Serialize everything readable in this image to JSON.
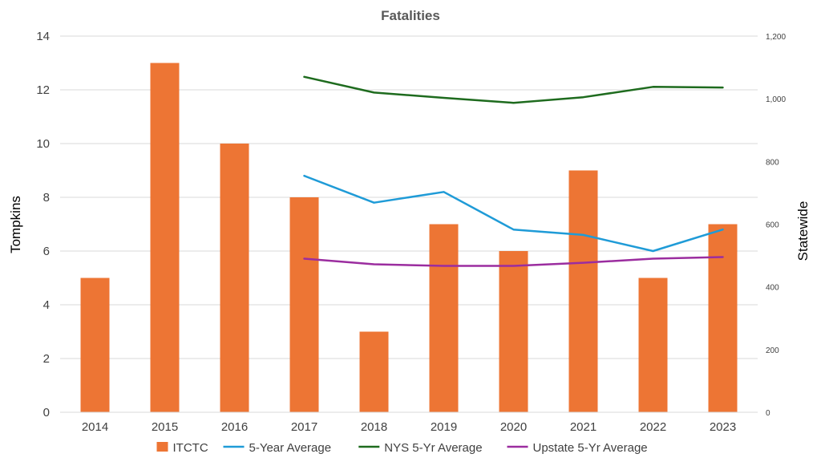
{
  "chart_data": {
    "type": "bar",
    "title": "Fatalities",
    "xlabel": "",
    "ylabel": "Tompkins",
    "y2label": "Statewide",
    "categories": [
      "2014",
      "2015",
      "2016",
      "2017",
      "2018",
      "2019",
      "2020",
      "2021",
      "2022",
      "2023"
    ],
    "ylim": [
      0,
      14
    ],
    "y_ticks": [
      "0",
      "2",
      "4",
      "6",
      "8",
      "10",
      "12",
      "14"
    ],
    "y2lim": [
      0,
      1200
    ],
    "y2_ticks": [
      "0",
      "200",
      "400",
      "600",
      "800",
      "1,000",
      "1,200"
    ],
    "grid": true,
    "legend_position": "bottom",
    "series": [
      {
        "name": "ITCTC",
        "type": "bar",
        "axis": "left",
        "color": "#ED7534",
        "values": [
          5,
          13,
          10,
          8,
          3,
          7,
          6,
          9,
          5,
          7
        ]
      },
      {
        "name": "5-Year Average",
        "type": "line",
        "axis": "left",
        "color": "#1F9BD7",
        "values": [
          null,
          null,
          null,
          8.8,
          7.8,
          8.2,
          6.8,
          6.6,
          6.0,
          6.8
        ]
      },
      {
        "name": "NYS 5-Yr Average",
        "type": "line",
        "axis": "right",
        "color": "#1E6B1E",
        "values": [
          null,
          null,
          null,
          1070,
          1020,
          1003,
          987,
          1005,
          1038,
          1036
        ]
      },
      {
        "name": "Upstate 5-Yr Average",
        "type": "line",
        "axis": "right",
        "color": "#9B2D9F",
        "values": [
          null,
          null,
          null,
          490,
          472,
          467,
          467,
          477,
          490,
          495
        ]
      }
    ]
  }
}
